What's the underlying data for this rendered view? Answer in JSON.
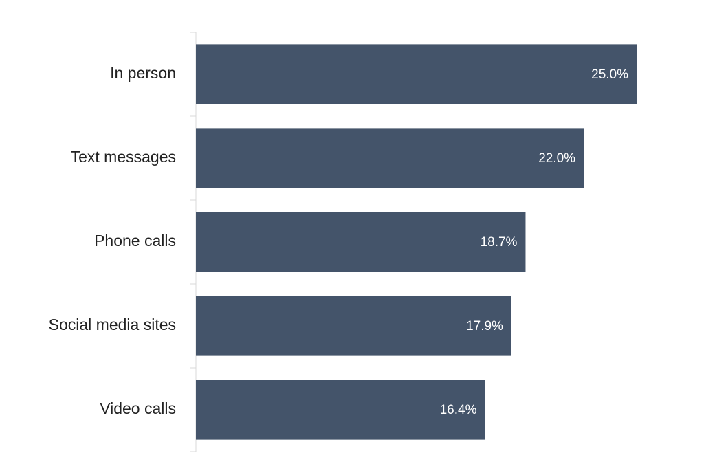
{
  "chart_data": {
    "type": "hbar",
    "categories": [
      "In person",
      "Text messages",
      "Phone calls",
      "Social media sites",
      "Video calls"
    ],
    "values": [
      25.0,
      22.0,
      18.7,
      17.9,
      16.4
    ],
    "value_labels": [
      "25.0%",
      "22.0%",
      "18.7%",
      "17.9%",
      "16.4%"
    ],
    "color": "#44546a",
    "xlim": [
      0,
      25
    ]
  }
}
